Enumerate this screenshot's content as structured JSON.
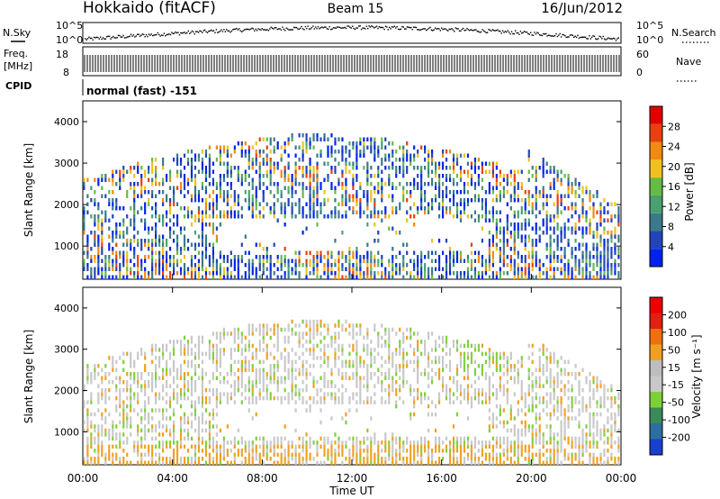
{
  "header": {
    "station": "Hokkaido (fitACF)",
    "beam": "Beam 15",
    "date": "16/Jun/2012"
  },
  "noise_panel": {
    "left_label": "N.Sky",
    "right_label": "N.Search",
    "left_ticks": [
      "10^5",
      "10^0"
    ],
    "right_ticks": [
      "10^5",
      "10^0"
    ]
  },
  "freq_panel": {
    "left_label_1": "Freq.",
    "left_label_2": "[MHz]",
    "left_ticks": [
      "18",
      "8"
    ],
    "right_label": "Nave",
    "right_ticks": [
      "60",
      "0"
    ]
  },
  "cpid": {
    "label": "CPID",
    "value": "normal (fast) -151"
  },
  "colors": {
    "power_scale": [
      "#0022ee",
      "#2244bb",
      "#3a7a8a",
      "#4aa070",
      "#66bb44",
      "#f0c020",
      "#f08a10",
      "#e84010",
      "#e00000"
    ],
    "velocity_scale": [
      "#1a3fcc",
      "#2c6ea0",
      "#3a8a5a",
      "#7ed03a",
      "#c8c8c8",
      "#bdbdbd",
      "#f0a020",
      "#f07010",
      "#e02010",
      "#ee0000"
    ]
  },
  "chart_data": [
    {
      "type": "heatmap",
      "panel": "power",
      "ylabel": "Slant Range [km]",
      "yticks": [
        "1000",
        "2000",
        "3000",
        "4000"
      ],
      "ylim": [
        200,
        4500
      ],
      "xlim": [
        "00:00",
        "24:00"
      ],
      "colorbar_label": "Power [dB]",
      "colorbar_ticks": [
        "4",
        "8",
        "12",
        "16",
        "20",
        "24",
        "28"
      ],
      "colorbar_range": [
        0,
        32
      ],
      "grid": false
    },
    {
      "type": "heatmap",
      "panel": "velocity",
      "ylabel": "Slant Range [km]",
      "yticks": [
        "1000",
        "2000",
        "3000",
        "4000"
      ],
      "ylim": [
        200,
        4500
      ],
      "xlim": [
        "00:00",
        "24:00"
      ],
      "xlabel": "Time UT",
      "xticks": [
        "00:00",
        "04:00",
        "08:00",
        "12:00",
        "16:00",
        "20:00",
        "00:00"
      ],
      "colorbar_label": "Velocity [m s⁻¹]",
      "colorbar_ticks": [
        "-200",
        "-100",
        "-50",
        "-15",
        "15",
        "50",
        "100",
        "200"
      ],
      "grid": false
    }
  ]
}
